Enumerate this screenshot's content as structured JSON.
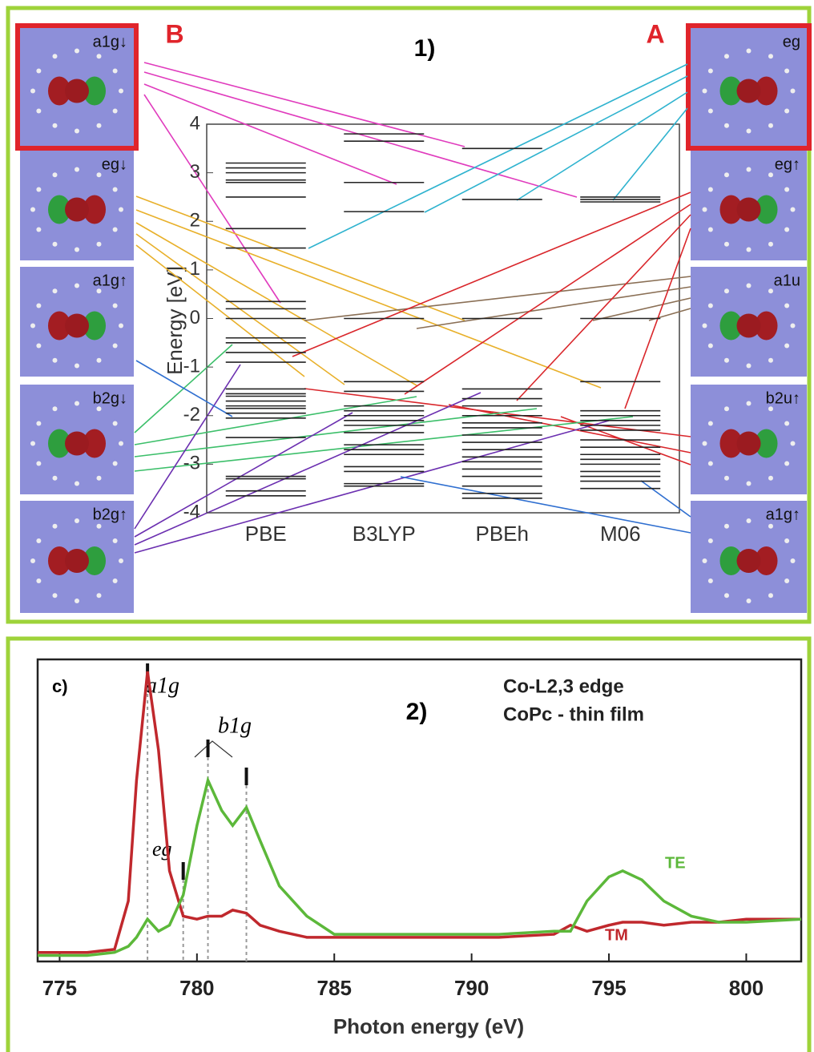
{
  "chart_data": [
    {
      "type": "levels",
      "panel_label": "1)",
      "marker_a": "A",
      "marker_b": "B",
      "ylabel": "Energy [eV]",
      "ylim": [
        -4,
        4
      ],
      "yticks": [
        -4,
        -3,
        -2,
        -1,
        0,
        1,
        2,
        3,
        4
      ],
      "categories": [
        "PBE",
        "B3LYP",
        "PBEh",
        "M06"
      ],
      "levels": [
        [
          3.2,
          3.1,
          3.0,
          2.85,
          2.8,
          2.5,
          1.85,
          1.45,
          0.35,
          0.2,
          0,
          -0.4,
          -0.5,
          -0.7,
          -0.9,
          -1.45,
          -1.55,
          -1.6,
          -1.7,
          -1.8,
          -1.85,
          -1.95,
          -2.05,
          -2.45,
          -3.25,
          -3.3,
          -3.55,
          -3.65
        ],
        [
          3.8,
          3.65,
          2.8,
          2.2,
          0,
          -1.3,
          -1.5,
          -1.8,
          -1.9,
          -2.0,
          -2.1,
          -2.2,
          -2.35,
          -2.6,
          -2.7,
          -2.8,
          -3.05,
          -3.15,
          -3.4,
          -3.45
        ],
        [
          3.5,
          2.45,
          0,
          -1.45,
          -1.65,
          -1.8,
          -2.0,
          -2.15,
          -2.25,
          -2.4,
          -2.55,
          -2.7,
          -2.85,
          -2.95,
          -3.1,
          -3.25,
          -3.45,
          -3.6,
          -3.7
        ],
        [
          2.5,
          2.45,
          2.4,
          0,
          -1.3,
          -1.9,
          -2.0,
          -2.1,
          -2.2,
          -2.3,
          -2.5,
          -2.65,
          -2.8,
          -2.9,
          -3.0,
          -3.15,
          -3.25,
          -3.35,
          -3.5
        ]
      ],
      "orbitals_left": [
        "a1g↓",
        "eg↓",
        "a1g↑",
        "b2g↓",
        "b2g↑"
      ],
      "orbitals_right": [
        "eg",
        "eg↑",
        "a1u",
        "b2u↑",
        "a1g↑"
      ]
    },
    {
      "type": "line",
      "panel_label": "2)",
      "subplot_label": "c)",
      "annotations": [
        "Co-L2,3 edge",
        "CoPc - thin film"
      ],
      "peak_labels": [
        "a1g",
        "eg",
        "b1g"
      ],
      "peak_markers": [
        778.2,
        779.5,
        780.4,
        781.8
      ],
      "xlabel": "Photon energy (eV)",
      "xlim": [
        774.2,
        802
      ],
      "xticks": [
        775,
        780,
        785,
        790,
        795,
        800
      ],
      "ylim": [
        0,
        1
      ],
      "x": [
        774.2,
        775,
        776,
        777,
        777.5,
        777.8,
        778.2,
        778.6,
        779,
        779.5,
        780,
        780.4,
        780.9,
        781.3,
        781.8,
        782.3,
        783,
        784,
        785,
        787,
        789,
        791,
        793,
        793.6,
        794.2,
        795,
        795.5,
        796.2,
        797,
        798,
        799,
        800,
        802
      ],
      "series": [
        {
          "name": "TM",
          "color": "#c0282d",
          "values": [
            0.03,
            0.03,
            0.03,
            0.04,
            0.2,
            0.6,
            0.96,
            0.7,
            0.3,
            0.15,
            0.14,
            0.15,
            0.15,
            0.17,
            0.16,
            0.12,
            0.1,
            0.08,
            0.08,
            0.08,
            0.08,
            0.08,
            0.09,
            0.12,
            0.1,
            0.12,
            0.13,
            0.13,
            0.12,
            0.13,
            0.13,
            0.14,
            0.14
          ]
        },
        {
          "name": "TE",
          "color": "#5cb83a",
          "values": [
            0.02,
            0.02,
            0.02,
            0.03,
            0.05,
            0.08,
            0.14,
            0.1,
            0.12,
            0.22,
            0.45,
            0.6,
            0.5,
            0.45,
            0.51,
            0.4,
            0.25,
            0.15,
            0.09,
            0.09,
            0.09,
            0.09,
            0.1,
            0.1,
            0.2,
            0.28,
            0.3,
            0.27,
            0.2,
            0.15,
            0.13,
            0.13,
            0.14
          ]
        }
      ]
    }
  ]
}
